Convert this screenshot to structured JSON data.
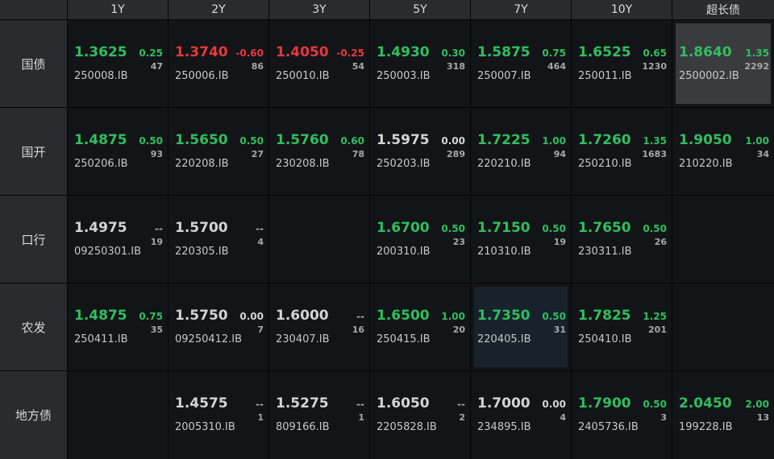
{
  "columns": [
    "1Y",
    "2Y",
    "3Y",
    "5Y",
    "7Y",
    "10Y",
    "超长债"
  ],
  "rows": [
    {
      "label": "国债",
      "cells": [
        {
          "yield": "1.3625",
          "change": "0.25",
          "volume": "47",
          "code": "250008.IB",
          "color": "#2fbf5f"
        },
        {
          "yield": "1.3740",
          "change": "-0.60",
          "volume": "86",
          "code": "250006.IB",
          "color": "#e8383d"
        },
        {
          "yield": "1.4050",
          "change": "-0.25",
          "volume": "54",
          "code": "250010.IB",
          "color": "#e8383d"
        },
        {
          "yield": "1.4930",
          "change": "0.30",
          "volume": "318",
          "code": "250003.IB",
          "color": "#2fbf5f"
        },
        {
          "yield": "1.5875",
          "change": "0.75",
          "volume": "464",
          "code": "250007.IB",
          "color": "#2fbf5f"
        },
        {
          "yield": "1.6525",
          "change": "0.65",
          "volume": "1230",
          "code": "250011.IB",
          "color": "#2fbf5f"
        },
        {
          "yield": "1.8640",
          "change": "1.35",
          "volume": "2292",
          "code": "2500002.IB",
          "color": "#2fbf5f",
          "highlight": "#3a3b3e"
        }
      ]
    },
    {
      "label": "国开",
      "cells": [
        {
          "yield": "1.4875",
          "change": "0.50",
          "volume": "93",
          "code": "250206.IB",
          "color": "#2fbf5f"
        },
        {
          "yield": "1.5650",
          "change": "0.50",
          "volume": "27",
          "code": "220208.IB",
          "color": "#2fbf5f"
        },
        {
          "yield": "1.5760",
          "change": "0.60",
          "volume": "78",
          "code": "230208.IB",
          "color": "#2fbf5f"
        },
        {
          "yield": "1.5975",
          "change": "0.00",
          "volume": "289",
          "code": "250203.IB",
          "color": "#d4d4d4"
        },
        {
          "yield": "1.7225",
          "change": "1.00",
          "volume": "94",
          "code": "220210.IB",
          "color": "#2fbf5f"
        },
        {
          "yield": "1.7260",
          "change": "1.35",
          "volume": "1683",
          "code": "250210.IB",
          "color": "#2fbf5f"
        },
        {
          "yield": "1.9050",
          "change": "1.00",
          "volume": "34",
          "code": "210220.IB",
          "color": "#2fbf5f"
        }
      ]
    },
    {
      "label": "口行",
      "cells": [
        {
          "yield": "1.4975",
          "change": "--",
          "volume": "19",
          "code": "09250301.IB",
          "color": "#d4d4d4"
        },
        {
          "yield": "1.5700",
          "change": "--",
          "volume": "4",
          "code": "220305.IB",
          "color": "#d4d4d4"
        },
        null,
        {
          "yield": "1.6700",
          "change": "0.50",
          "volume": "23",
          "code": "200310.IB",
          "color": "#2fbf5f"
        },
        {
          "yield": "1.7150",
          "change": "0.50",
          "volume": "19",
          "code": "210310.IB",
          "color": "#2fbf5f"
        },
        {
          "yield": "1.7650",
          "change": "0.50",
          "volume": "26",
          "code": "230311.IB",
          "color": "#2fbf5f"
        },
        null
      ]
    },
    {
      "label": "农发",
      "cells": [
        {
          "yield": "1.4875",
          "change": "0.75",
          "volume": "35",
          "code": "250411.IB",
          "color": "#2fbf5f"
        },
        {
          "yield": "1.5750",
          "change": "0.00",
          "volume": "7",
          "code": "09250412.IB",
          "color": "#d4d4d4"
        },
        {
          "yield": "1.6000",
          "change": "--",
          "volume": "16",
          "code": "230407.IB",
          "color": "#d4d4d4"
        },
        {
          "yield": "1.6500",
          "change": "1.00",
          "volume": "20",
          "code": "250415.IB",
          "color": "#2fbf5f"
        },
        {
          "yield": "1.7350",
          "change": "0.50",
          "volume": "31",
          "code": "220405.IB",
          "color": "#2fbf5f",
          "highlight": "#17222c"
        },
        {
          "yield": "1.7825",
          "change": "1.25",
          "volume": "201",
          "code": "250410.IB",
          "color": "#2fbf5f"
        },
        null
      ]
    },
    {
      "label": "地方债",
      "cells": [
        null,
        {
          "yield": "1.4575",
          "change": "--",
          "volume": "1",
          "code": "2005310.IB",
          "color": "#d4d4d4"
        },
        {
          "yield": "1.5275",
          "change": "--",
          "volume": "1",
          "code": "809166.IB",
          "color": "#d4d4d4"
        },
        {
          "yield": "1.6050",
          "change": "--",
          "volume": "2",
          "code": "2205828.IB",
          "color": "#d4d4d4"
        },
        {
          "yield": "1.7000",
          "change": "0.00",
          "volume": "4",
          "code": "234895.IB",
          "color": "#d4d4d4"
        },
        {
          "yield": "1.7900",
          "change": "0.50",
          "volume": "3",
          "code": "2405736.IB",
          "color": "#2fbf5f"
        },
        {
          "yield": "2.0450",
          "change": "2.00",
          "volume": "13",
          "code": "199228.IB",
          "color": "#2fbf5f"
        }
      ]
    }
  ]
}
